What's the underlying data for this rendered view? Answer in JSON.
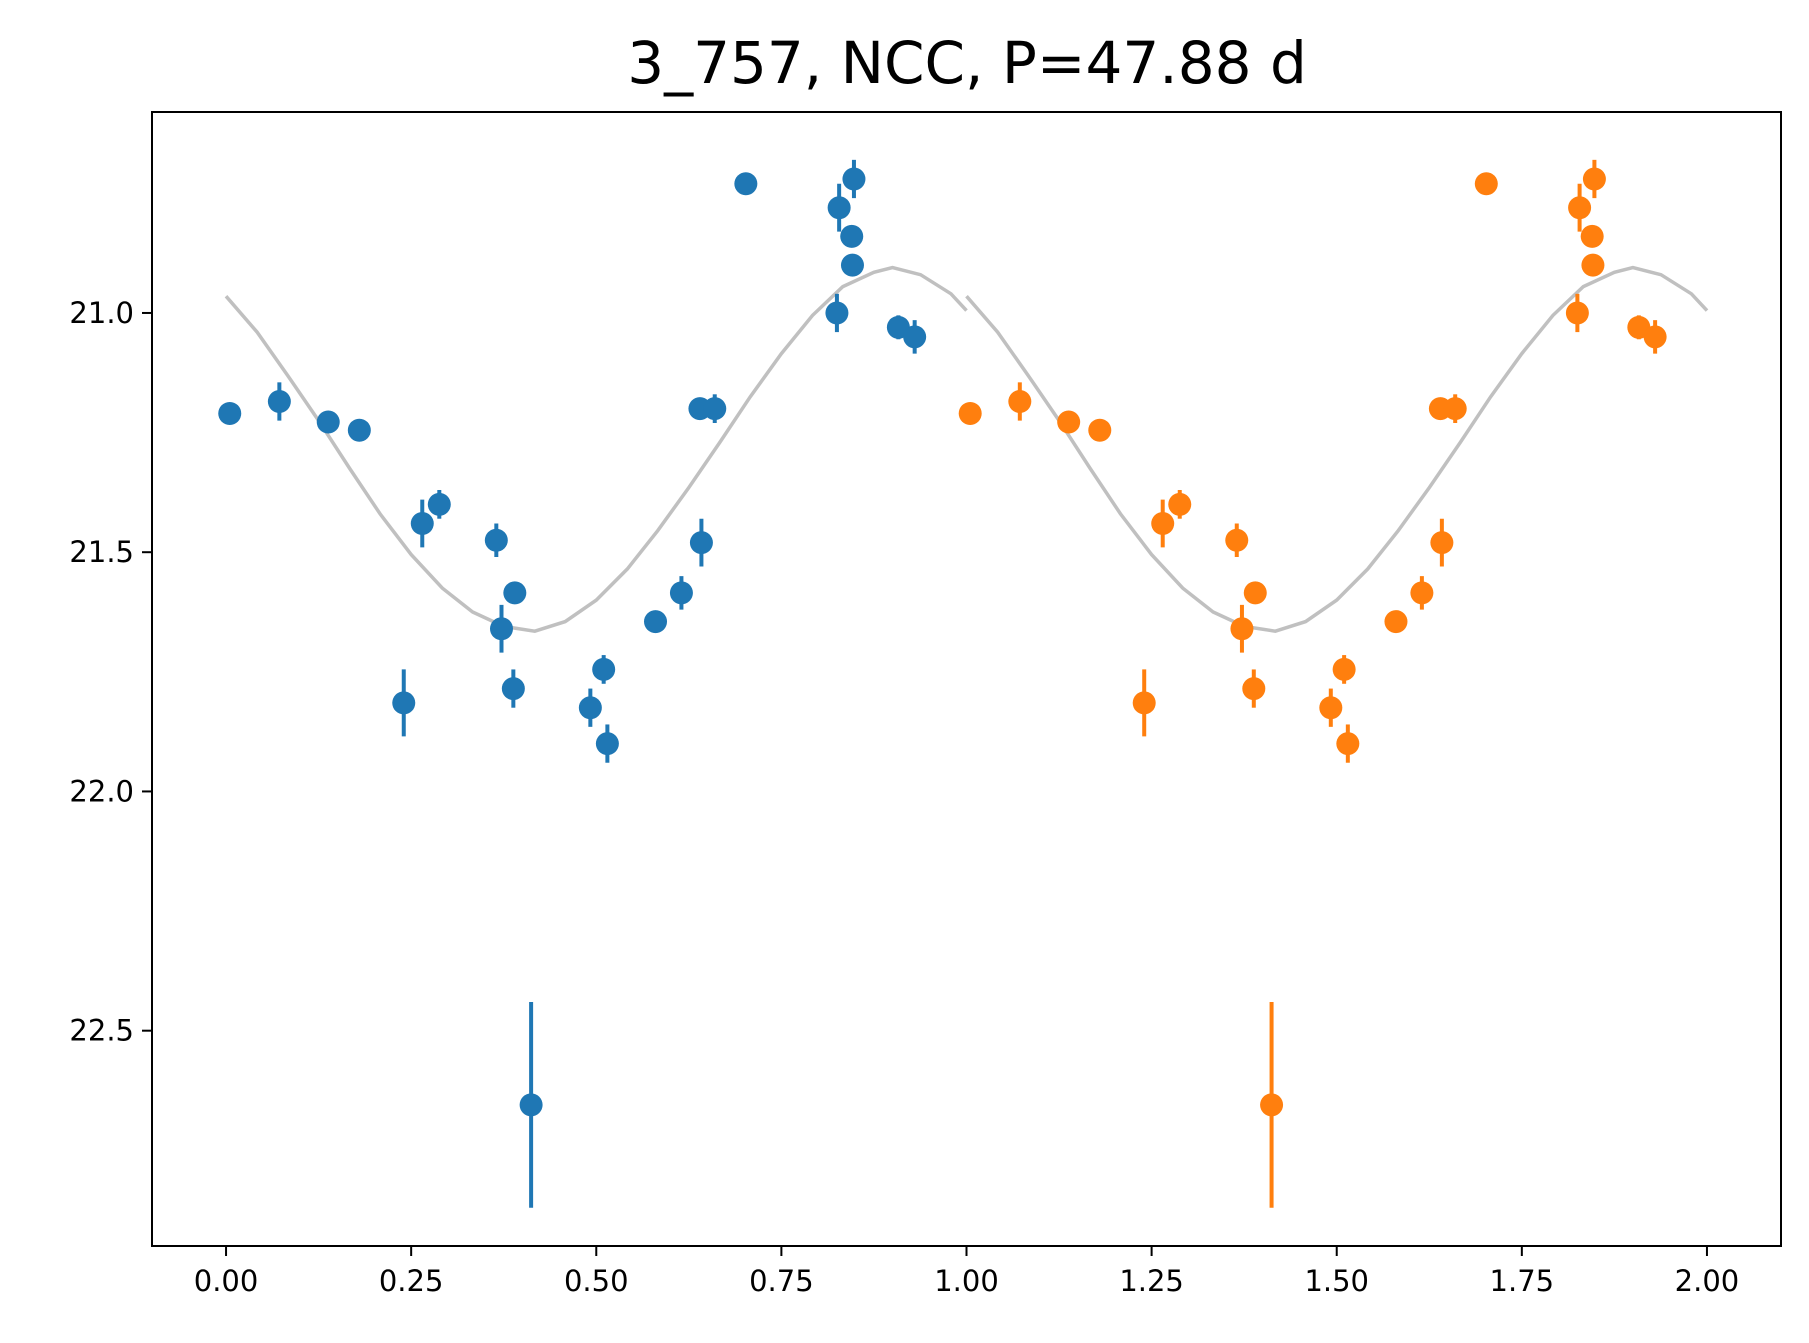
{
  "chart_data": {
    "type": "scatter",
    "title": "3_757, NCC, P=47.88 d",
    "xlabel": "",
    "ylabel": "",
    "xlim": [
      -0.1,
      2.1
    ],
    "ylim": [
      22.95,
      20.58
    ],
    "y_inverted": true,
    "grid": false,
    "legend": "none",
    "x_ticks": [
      0.0,
      0.25,
      0.5,
      0.75,
      1.0,
      1.25,
      1.5,
      1.75,
      2.0
    ],
    "x_tick_labels": [
      "0.00",
      "0.25",
      "0.50",
      "0.75",
      "1.00",
      "1.25",
      "1.50",
      "1.75",
      "2.00"
    ],
    "y_ticks": [
      21.0,
      21.5,
      22.0,
      22.5
    ],
    "y_tick_labels": [
      "21.0",
      "21.5",
      "22.0",
      "22.5"
    ],
    "colors": {
      "phase_0_1": "#1f77b4",
      "phase_1_2": "#ff7f0e",
      "model": "#c0c0c0"
    },
    "points": [
      {
        "x": 0.005,
        "y": 21.21,
        "err": 0.015
      },
      {
        "x": 0.072,
        "y": 21.185,
        "err": 0.04
      },
      {
        "x": 0.138,
        "y": 21.228,
        "err": 0.015
      },
      {
        "x": 0.18,
        "y": 21.245,
        "err": 0.02
      },
      {
        "x": 0.24,
        "y": 21.815,
        "err": 0.07
      },
      {
        "x": 0.265,
        "y": 21.44,
        "err": 0.05
      },
      {
        "x": 0.288,
        "y": 21.4,
        "err": 0.03
      },
      {
        "x": 0.365,
        "y": 21.475,
        "err": 0.035
      },
      {
        "x": 0.372,
        "y": 21.66,
        "err": 0.05
      },
      {
        "x": 0.388,
        "y": 21.785,
        "err": 0.04
      },
      {
        "x": 0.39,
        "y": 21.585,
        "err": 0.02
      },
      {
        "x": 0.412,
        "y": 22.655,
        "err": 0.215
      },
      {
        "x": 0.492,
        "y": 21.825,
        "err": 0.04
      },
      {
        "x": 0.51,
        "y": 21.745,
        "err": 0.03
      },
      {
        "x": 0.515,
        "y": 21.9,
        "err": 0.04
      },
      {
        "x": 0.58,
        "y": 21.645,
        "err": 0.02
      },
      {
        "x": 0.615,
        "y": 21.585,
        "err": 0.035
      },
      {
        "x": 0.64,
        "y": 21.2,
        "err": 0.02
      },
      {
        "x": 0.642,
        "y": 21.48,
        "err": 0.05
      },
      {
        "x": 0.66,
        "y": 21.2,
        "err": 0.03
      },
      {
        "x": 0.702,
        "y": 20.73,
        "err": 0.015
      },
      {
        "x": 0.825,
        "y": 21.0,
        "err": 0.04
      },
      {
        "x": 0.828,
        "y": 20.78,
        "err": 0.05
      },
      {
        "x": 0.845,
        "y": 20.84,
        "err": 0.02
      },
      {
        "x": 0.846,
        "y": 20.9,
        "err": 0.02
      },
      {
        "x": 0.848,
        "y": 20.72,
        "err": 0.04
      },
      {
        "x": 0.908,
        "y": 21.03,
        "err": 0.025
      },
      {
        "x": 0.93,
        "y": 21.05,
        "err": 0.035
      }
    ],
    "model_curve": {
      "x": [
        0.0,
        0.042,
        0.083,
        0.125,
        0.167,
        0.208,
        0.25,
        0.292,
        0.333,
        0.375,
        0.417,
        0.458,
        0.5,
        0.542,
        0.583,
        0.625,
        0.667,
        0.708,
        0.75,
        0.792,
        0.833,
        0.875,
        0.9,
        0.938,
        0.979,
        1.0
      ],
      "y": [
        20.965,
        21.04,
        21.13,
        21.225,
        21.325,
        21.42,
        21.505,
        21.575,
        21.625,
        21.655,
        21.665,
        21.645,
        21.6,
        21.535,
        21.455,
        21.365,
        21.27,
        21.175,
        21.085,
        21.005,
        20.945,
        20.915,
        20.905,
        20.92,
        20.96,
        20.995
      ]
    }
  }
}
